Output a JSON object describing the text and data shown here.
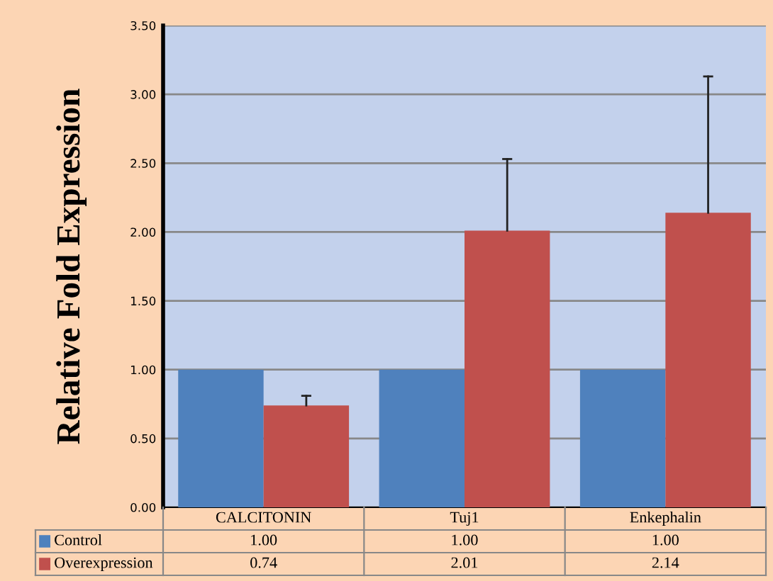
{
  "chart_data": {
    "type": "bar",
    "ylabel": "Relative Fold Expression",
    "categories": [
      "CALCITONIN",
      "Tuj1",
      "Enkephalin"
    ],
    "series": [
      {
        "name": "Control",
        "color": "#4f81bd",
        "values": [
          1.0,
          1.0,
          1.0
        ],
        "value_labels": [
          "1.00",
          "1.00",
          "1.00"
        ]
      },
      {
        "name": "Overexpression",
        "color": "#c0504d",
        "values": [
          0.74,
          2.01,
          2.14
        ],
        "value_labels": [
          "0.74",
          "2.01",
          "2.14"
        ],
        "errors": [
          [
            0.74,
            0.81
          ],
          [
            2.01,
            2.53
          ],
          [
            2.14,
            3.13
          ]
        ]
      }
    ],
    "ylim": [
      0,
      3.5
    ],
    "yticks": [
      {
        "value": 0,
        "label": "0.00"
      },
      {
        "value": 0.5,
        "label": "0.50"
      },
      {
        "value": 1,
        "label": "1.00"
      },
      {
        "value": 1.5,
        "label": "1.50"
      },
      {
        "value": 2,
        "label": "2.00"
      },
      {
        "value": 2.5,
        "label": "2.50"
      },
      {
        "value": 3,
        "label": "3.00"
      },
      {
        "value": 3.5,
        "label": "3.50"
      }
    ],
    "grid": "y",
    "legend": "bottom"
  }
}
